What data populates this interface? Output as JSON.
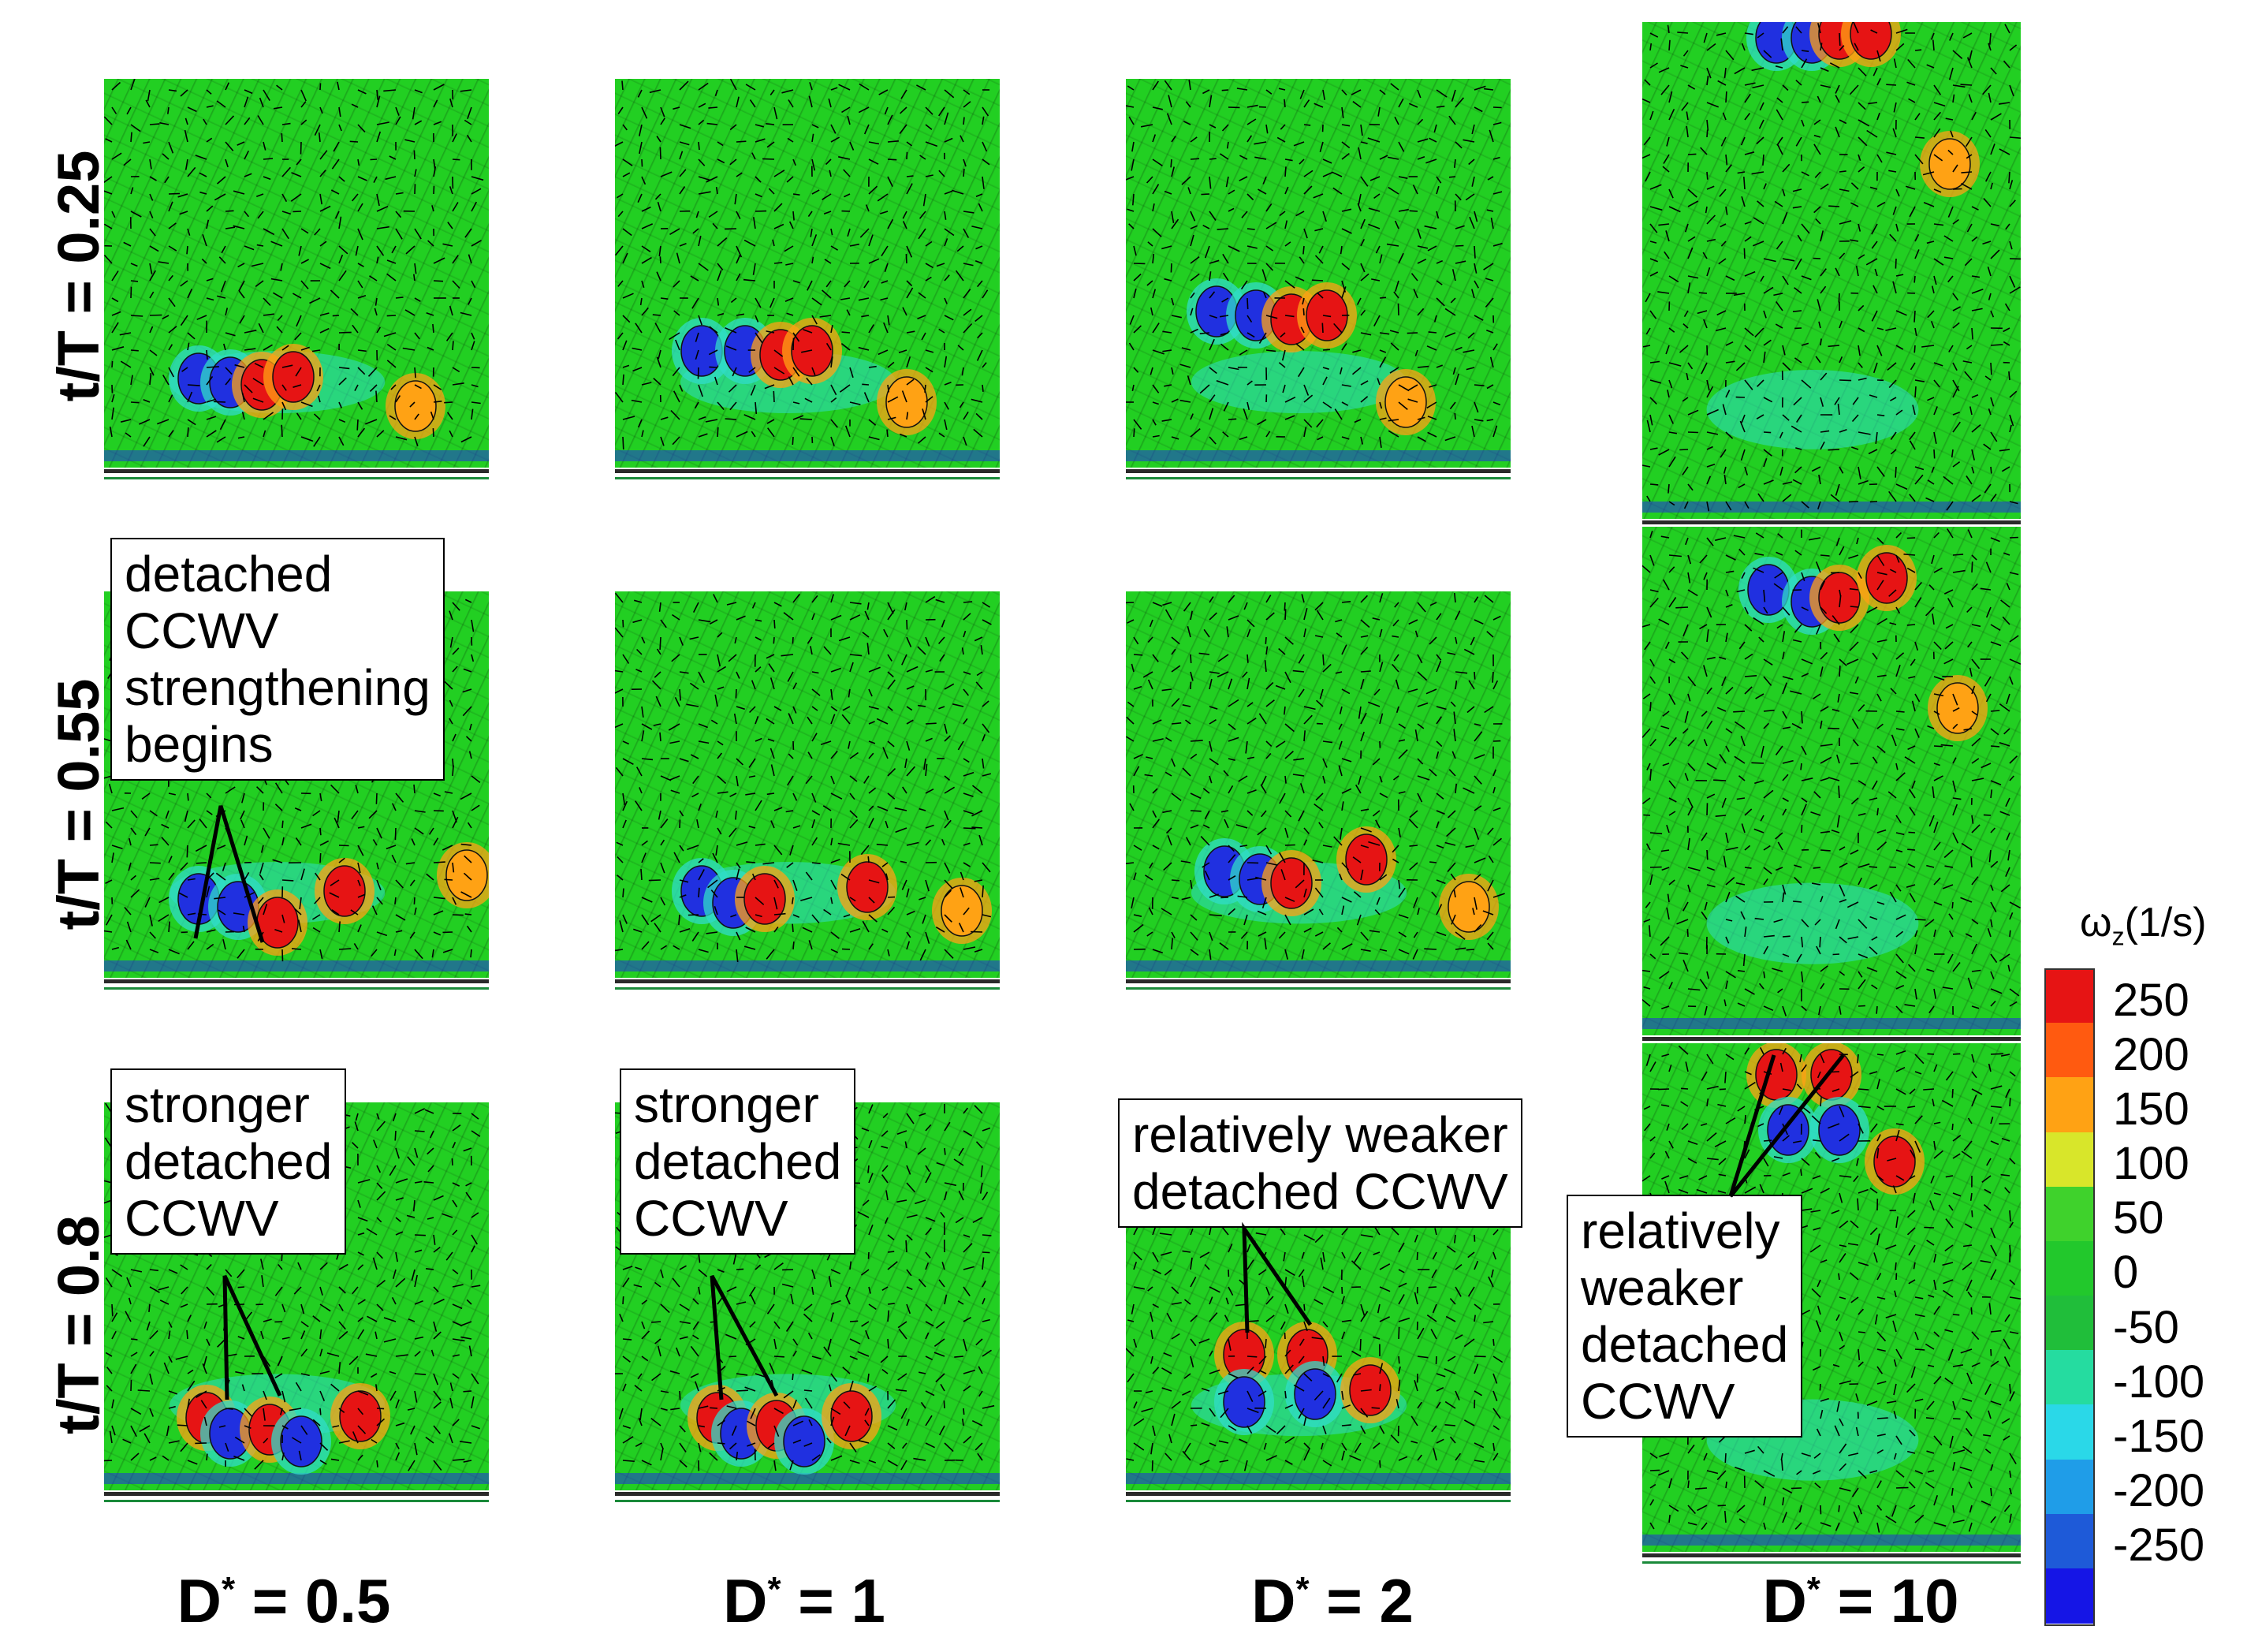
{
  "row_labels": [
    "t/T = 0.25",
    "t/T = 0.55",
    "t/T = 0.8"
  ],
  "columns": [
    {
      "base": "D",
      "sup": "*",
      "rest": " = 0.5"
    },
    {
      "base": "D",
      "sup": "*",
      "rest": " = 1"
    },
    {
      "base": "D",
      "sup": "*",
      "rest": " = 2"
    },
    {
      "base": "D",
      "sup": "*",
      "rest": " = 10"
    }
  ],
  "annotations": {
    "a1": [
      "detached",
      "CCWV",
      "strengthening",
      "begins"
    ],
    "a2": [
      "stronger",
      "detached",
      "CCWV"
    ],
    "a3": [
      "stronger",
      "detached",
      "CCWV"
    ],
    "a4": [
      "relatively weaker",
      "detached CCWV"
    ],
    "a5": [
      "relatively",
      "weaker",
      "detached",
      "CCWV"
    ]
  },
  "colorbar": {
    "title": {
      "omega": "ω",
      "sub": "z",
      "rest": "(1/s)"
    },
    "ticks": [
      "250",
      "200",
      "150",
      "100",
      "50",
      "0",
      "-50",
      "-100",
      "-150",
      "-200",
      "-250"
    ],
    "colors": [
      "#e61414",
      "#ff5a10",
      "#ffa214",
      "#d8e62a",
      "#3fd22c",
      "#22c82c",
      "#20be3a",
      "#25dca0",
      "#2ad8e8",
      "#1f9de8",
      "#1e5ad8",
      "#1515e6"
    ]
  },
  "field_colors": {
    "background": "#22cf22",
    "positive": "#e61414",
    "negative": "#2030e0",
    "weak_negative": "#30dcc8",
    "weak_positive": "#ffa214"
  }
}
